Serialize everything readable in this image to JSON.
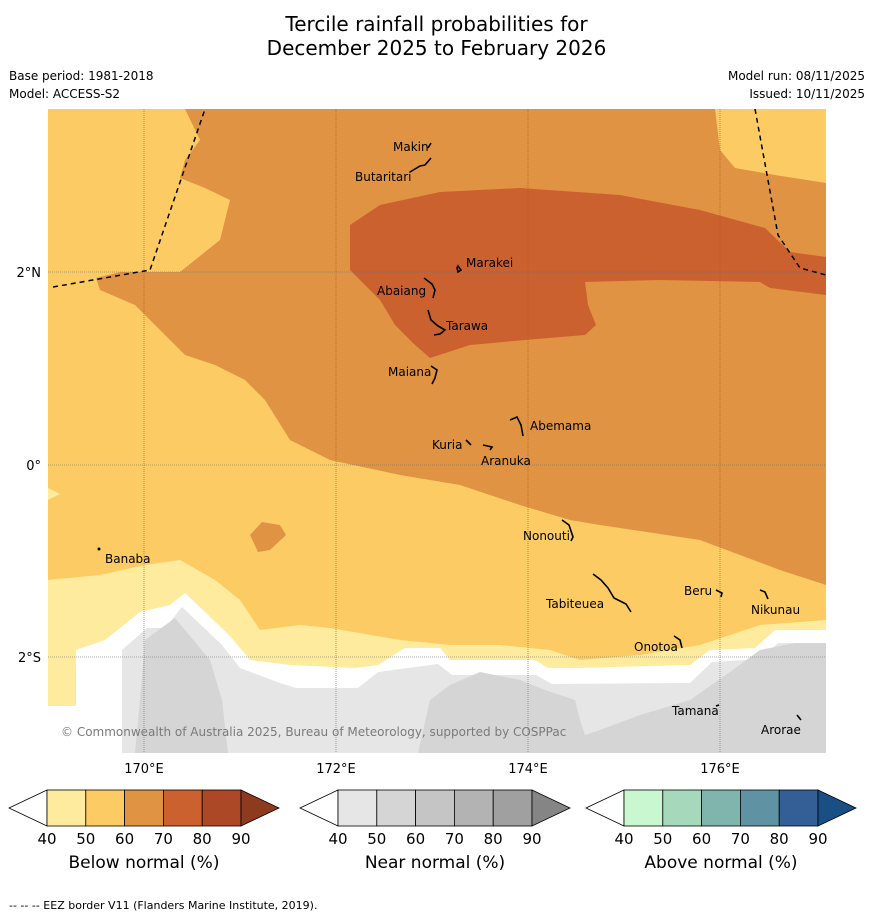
{
  "title": {
    "line1": "Tercile rainfall probabilities for",
    "line2": "December 2025 to February 2026"
  },
  "meta": {
    "base_period": "Base period: 1981-2018",
    "model": "Model: ACCESS-S2",
    "model_run": "Model run: 08/11/2025",
    "issued": "Issued: 10/11/2025"
  },
  "map": {
    "lat_labels": [
      "2°N",
      "0°",
      "2°S"
    ],
    "lon_labels": [
      "170°E",
      "172°E",
      "174°E",
      "176°E"
    ],
    "copyright": "© Commonwealth of Australia 2025, Bureau of Meteorology, supported by COSPPac",
    "places": [
      "Makin",
      "Butaritari",
      "Marakei",
      "Abaiang",
      "Tarawa",
      "Maiana",
      "Abemama",
      "Kuria",
      "Aranuka",
      "Nonouti",
      "Banaba",
      "Beru",
      "Tabiteuea",
      "Nikunau",
      "Onotoa",
      "Tamana",
      "Arorae"
    ]
  },
  "colorbars": [
    {
      "label": "Below normal (%)",
      "ticks": [
        "40",
        "50",
        "60",
        "70",
        "80",
        "90"
      ],
      "colors": [
        "#ffffff",
        "#feeb9d",
        "#fdcb64",
        "#e09343",
        "#cc6130",
        "#ad4826",
        "#8e3a1e"
      ]
    },
    {
      "label": "Near normal (%)",
      "ticks": [
        "40",
        "50",
        "60",
        "70",
        "80",
        "90"
      ],
      "colors": [
        "#ffffff",
        "#e6e6e6",
        "#d5d5d5",
        "#c5c5c5",
        "#b3b3b3",
        "#a0a0a0",
        "#858585"
      ]
    },
    {
      "label": "Above normal (%)",
      "ticks": [
        "40",
        "50",
        "60",
        "70",
        "80",
        "90"
      ],
      "colors": [
        "#ffffff",
        "#c9f7d0",
        "#a6d9bc",
        "#7fb5ad",
        "#5f93a3",
        "#335f96",
        "#1a4f85"
      ]
    }
  ],
  "footnote": "--  --  -- EEZ border V11 (Flanders Marine Institute, 2019)."
}
